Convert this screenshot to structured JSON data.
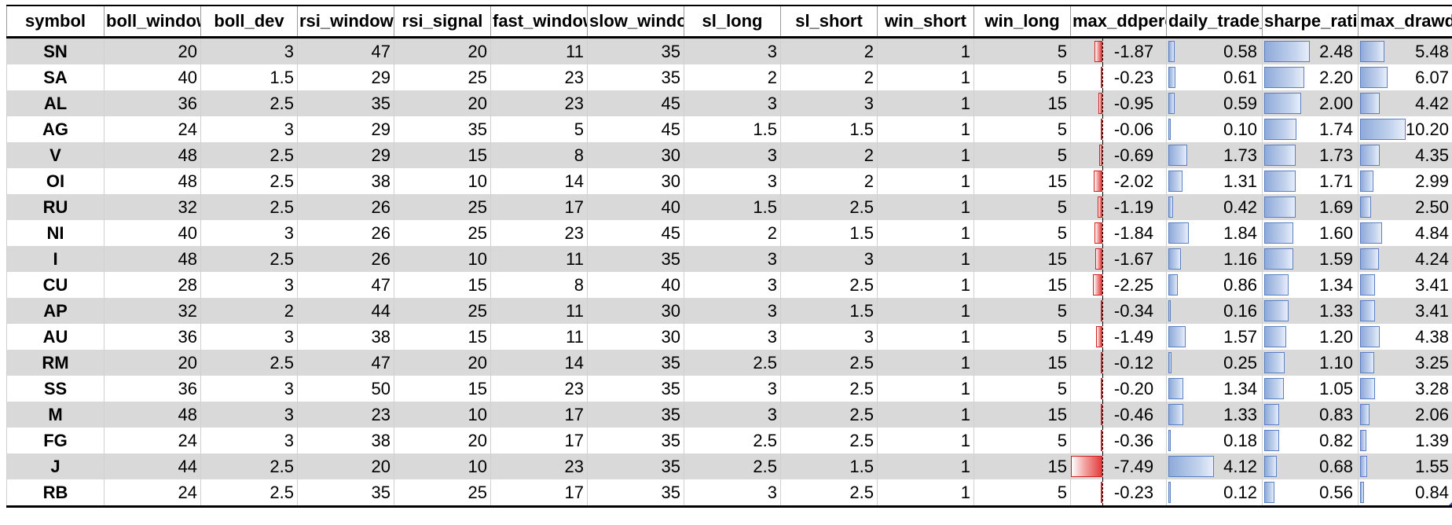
{
  "columns": [
    "symbol",
    "boll_window",
    "boll_dev",
    "rsi_window",
    "rsi_signal",
    "fast_window",
    "slow_window",
    "sl_long",
    "sl_short",
    "win_short",
    "win_long",
    "max_ddpercent",
    "daily_trade_count",
    "sharpe_ratio",
    "max_drawdown_duration"
  ],
  "rows": [
    {
      "symbol": "SN",
      "boll_window": "20",
      "boll_dev": "3",
      "rsi_window": "47",
      "rsi_signal": "20",
      "fast_window": "11",
      "slow_window": "35",
      "sl_long": "3",
      "sl_short": "2",
      "win_short": "1",
      "win_long": "5",
      "max_ddpercent": "-1.87",
      "daily_trade_count": "0.58",
      "sharpe_ratio": "2.48",
      "max_drawdown_duration": "5.48"
    },
    {
      "symbol": "SA",
      "boll_window": "40",
      "boll_dev": "1.5",
      "rsi_window": "29",
      "rsi_signal": "25",
      "fast_window": "23",
      "slow_window": "35",
      "sl_long": "2",
      "sl_short": "2",
      "win_short": "1",
      "win_long": "5",
      "max_ddpercent": "-0.23",
      "daily_trade_count": "0.61",
      "sharpe_ratio": "2.20",
      "max_drawdown_duration": "6.07"
    },
    {
      "symbol": "AL",
      "boll_window": "36",
      "boll_dev": "2.5",
      "rsi_window": "35",
      "rsi_signal": "20",
      "fast_window": "23",
      "slow_window": "45",
      "sl_long": "3",
      "sl_short": "3",
      "win_short": "1",
      "win_long": "15",
      "max_ddpercent": "-0.95",
      "daily_trade_count": "0.59",
      "sharpe_ratio": "2.00",
      "max_drawdown_duration": "4.42"
    },
    {
      "symbol": "AG",
      "boll_window": "24",
      "boll_dev": "3",
      "rsi_window": "29",
      "rsi_signal": "35",
      "fast_window": "5",
      "slow_window": "45",
      "sl_long": "1.5",
      "sl_short": "1.5",
      "win_short": "1",
      "win_long": "5",
      "max_ddpercent": "-0.06",
      "daily_trade_count": "0.10",
      "sharpe_ratio": "1.74",
      "max_drawdown_duration": "10.20"
    },
    {
      "symbol": "V",
      "boll_window": "48",
      "boll_dev": "2.5",
      "rsi_window": "29",
      "rsi_signal": "15",
      "fast_window": "8",
      "slow_window": "30",
      "sl_long": "3",
      "sl_short": "2",
      "win_short": "1",
      "win_long": "5",
      "max_ddpercent": "-0.69",
      "daily_trade_count": "1.73",
      "sharpe_ratio": "1.73",
      "max_drawdown_duration": "4.35"
    },
    {
      "symbol": "OI",
      "boll_window": "48",
      "boll_dev": "2.5",
      "rsi_window": "38",
      "rsi_signal": "10",
      "fast_window": "14",
      "slow_window": "30",
      "sl_long": "3",
      "sl_short": "2",
      "win_short": "1",
      "win_long": "15",
      "max_ddpercent": "-2.02",
      "daily_trade_count": "1.31",
      "sharpe_ratio": "1.71",
      "max_drawdown_duration": "2.99"
    },
    {
      "symbol": "RU",
      "boll_window": "32",
      "boll_dev": "2.5",
      "rsi_window": "26",
      "rsi_signal": "25",
      "fast_window": "17",
      "slow_window": "40",
      "sl_long": "1.5",
      "sl_short": "2.5",
      "win_short": "1",
      "win_long": "5",
      "max_ddpercent": "-1.19",
      "daily_trade_count": "0.42",
      "sharpe_ratio": "1.69",
      "max_drawdown_duration": "2.50"
    },
    {
      "symbol": "NI",
      "boll_window": "40",
      "boll_dev": "3",
      "rsi_window": "26",
      "rsi_signal": "25",
      "fast_window": "23",
      "slow_window": "45",
      "sl_long": "2",
      "sl_short": "1.5",
      "win_short": "1",
      "win_long": "5",
      "max_ddpercent": "-1.84",
      "daily_trade_count": "1.84",
      "sharpe_ratio": "1.60",
      "max_drawdown_duration": "4.84"
    },
    {
      "symbol": "I",
      "boll_window": "48",
      "boll_dev": "2.5",
      "rsi_window": "26",
      "rsi_signal": "10",
      "fast_window": "11",
      "slow_window": "35",
      "sl_long": "3",
      "sl_short": "3",
      "win_short": "1",
      "win_long": "15",
      "max_ddpercent": "-1.67",
      "daily_trade_count": "1.16",
      "sharpe_ratio": "1.59",
      "max_drawdown_duration": "4.24"
    },
    {
      "symbol": "CU",
      "boll_window": "28",
      "boll_dev": "3",
      "rsi_window": "47",
      "rsi_signal": "15",
      "fast_window": "8",
      "slow_window": "40",
      "sl_long": "3",
      "sl_short": "2.5",
      "win_short": "1",
      "win_long": "15",
      "max_ddpercent": "-2.25",
      "daily_trade_count": "0.86",
      "sharpe_ratio": "1.34",
      "max_drawdown_duration": "3.41"
    },
    {
      "symbol": "AP",
      "boll_window": "32",
      "boll_dev": "2",
      "rsi_window": "44",
      "rsi_signal": "25",
      "fast_window": "11",
      "slow_window": "30",
      "sl_long": "3",
      "sl_short": "1.5",
      "win_short": "1",
      "win_long": "5",
      "max_ddpercent": "-0.34",
      "daily_trade_count": "0.16",
      "sharpe_ratio": "1.33",
      "max_drawdown_duration": "3.41"
    },
    {
      "symbol": "AU",
      "boll_window": "36",
      "boll_dev": "3",
      "rsi_window": "38",
      "rsi_signal": "15",
      "fast_window": "11",
      "slow_window": "30",
      "sl_long": "3",
      "sl_short": "3",
      "win_short": "1",
      "win_long": "5",
      "max_ddpercent": "-1.49",
      "daily_trade_count": "1.57",
      "sharpe_ratio": "1.20",
      "max_drawdown_duration": "4.38"
    },
    {
      "symbol": "RM",
      "boll_window": "20",
      "boll_dev": "2.5",
      "rsi_window": "47",
      "rsi_signal": "20",
      "fast_window": "14",
      "slow_window": "35",
      "sl_long": "2.5",
      "sl_short": "2.5",
      "win_short": "1",
      "win_long": "15",
      "max_ddpercent": "-0.12",
      "daily_trade_count": "0.25",
      "sharpe_ratio": "1.10",
      "max_drawdown_duration": "3.25"
    },
    {
      "symbol": "SS",
      "boll_window": "36",
      "boll_dev": "3",
      "rsi_window": "50",
      "rsi_signal": "15",
      "fast_window": "23",
      "slow_window": "35",
      "sl_long": "3",
      "sl_short": "2.5",
      "win_short": "1",
      "win_long": "5",
      "max_ddpercent": "-0.20",
      "daily_trade_count": "1.34",
      "sharpe_ratio": "1.05",
      "max_drawdown_duration": "3.28"
    },
    {
      "symbol": "M",
      "boll_window": "48",
      "boll_dev": "3",
      "rsi_window": "23",
      "rsi_signal": "10",
      "fast_window": "17",
      "slow_window": "35",
      "sl_long": "3",
      "sl_short": "2.5",
      "win_short": "1",
      "win_long": "15",
      "max_ddpercent": "-0.46",
      "daily_trade_count": "1.33",
      "sharpe_ratio": "0.83",
      "max_drawdown_duration": "2.06"
    },
    {
      "symbol": "FG",
      "boll_window": "24",
      "boll_dev": "3",
      "rsi_window": "38",
      "rsi_signal": "20",
      "fast_window": "17",
      "slow_window": "35",
      "sl_long": "2.5",
      "sl_short": "2.5",
      "win_short": "1",
      "win_long": "5",
      "max_ddpercent": "-0.36",
      "daily_trade_count": "0.18",
      "sharpe_ratio": "0.82",
      "max_drawdown_duration": "1.39"
    },
    {
      "symbol": "J",
      "boll_window": "44",
      "boll_dev": "2.5",
      "rsi_window": "20",
      "rsi_signal": "10",
      "fast_window": "23",
      "slow_window": "35",
      "sl_long": "2.5",
      "sl_short": "1.5",
      "win_short": "1",
      "win_long": "15",
      "max_ddpercent": "-7.49",
      "daily_trade_count": "4.12",
      "sharpe_ratio": "0.68",
      "max_drawdown_duration": "1.55"
    },
    {
      "symbol": "RB",
      "boll_window": "24",
      "boll_dev": "2.5",
      "rsi_window": "35",
      "rsi_signal": "25",
      "fast_window": "17",
      "slow_window": "35",
      "sl_long": "3",
      "sl_short": "2.5",
      "win_short": "1",
      "win_long": "5",
      "max_ddpercent": "-0.23",
      "daily_trade_count": "0.12",
      "sharpe_ratio": "0.56",
      "max_drawdown_duration": "0.84"
    }
  ],
  "data_bars": {
    "max_ddpercent": {
      "min": -7.49,
      "max": 0,
      "color": "#e23c3c"
    },
    "daily_trade_count": {
      "min": 0,
      "max": 4.12,
      "color": "#5b7fc4"
    },
    "sharpe_ratio": {
      "min": 0,
      "max": 2.48,
      "color": "#5b7fc4"
    },
    "max_drawdown_duration": {
      "min": 0,
      "max": 10.2,
      "color": "#5b7fc4"
    }
  }
}
